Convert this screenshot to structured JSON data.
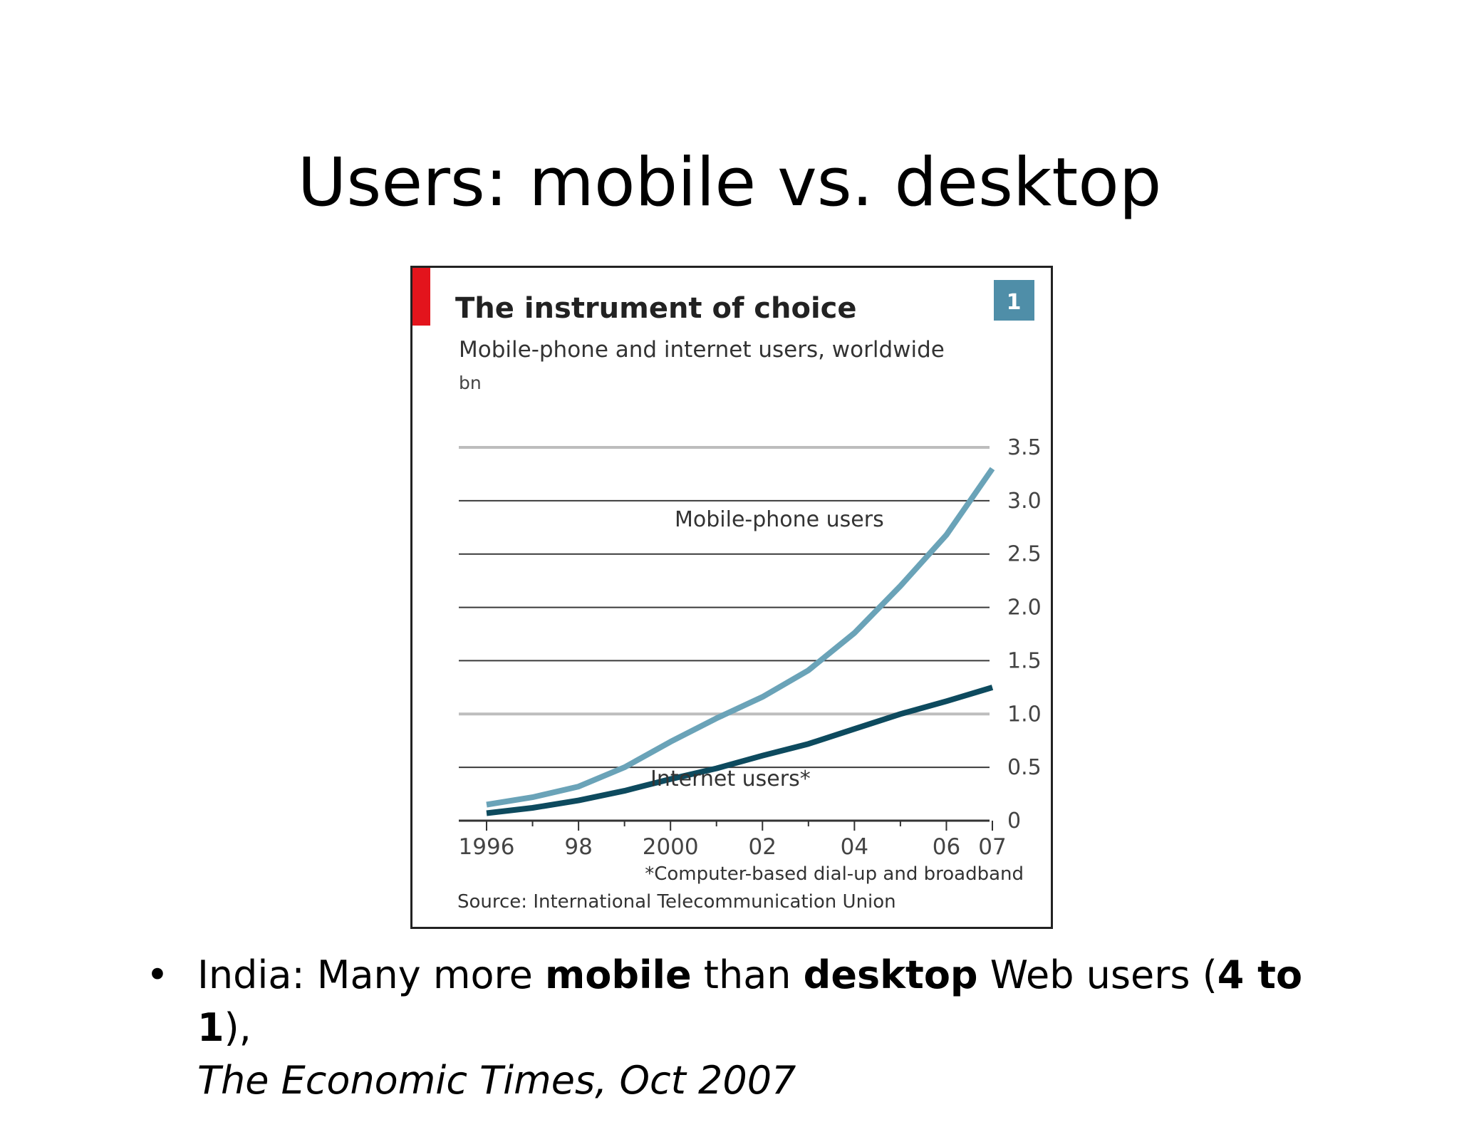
{
  "slide": {
    "title": "Users: mobile vs. desktop"
  },
  "bullet": {
    "marker": "•",
    "prefix": "India: Many more ",
    "bold_1": "mobile",
    "middle_1": " than ",
    "bold_2": "desktop",
    "middle_2": " Web users (",
    "bold_3": "4 to 1",
    "suffix": "),",
    "citation": "The Economic Times, Oct 2007"
  },
  "colors": {
    "accent_red": "#e3141c",
    "badge_blue": "#4f8ea8",
    "mobile_line": "#6aa3b8",
    "internet_line": "#0d4a5e",
    "grid_dark": "#3a3a3a",
    "grid_light": "#bdbdbd"
  },
  "chart_data": {
    "type": "line",
    "title": "The instrument of choice",
    "badge": "1",
    "subtitle": "Mobile-phone and internet users, worldwide",
    "unit_label": "bn",
    "ylim": [
      0,
      3.5
    ],
    "y_ticks": [
      "3.5",
      "3.0",
      "2.5",
      "2.0",
      "1.5",
      "1.0",
      "0.5",
      "0"
    ],
    "y_tick_values": [
      3.5,
      3.0,
      2.5,
      2.0,
      1.5,
      1.0,
      0.5,
      0
    ],
    "xlim": [
      1996,
      2007
    ],
    "x_tick_labels": [
      "1996",
      "98",
      "2000",
      "02",
      "04",
      "06",
      "07"
    ],
    "x_tick_values": [
      1996,
      1998,
      2000,
      2002,
      2004,
      2006,
      2007
    ],
    "y_axis_position": "right",
    "series": [
      {
        "name": "Mobile-phone users",
        "color_key": "mobile_line",
        "x": [
          1996,
          1997,
          1998,
          1999,
          2000,
          2001,
          2002,
          2003,
          2004,
          2005,
          2006,
          2007
        ],
        "values": [
          0.15,
          0.22,
          0.32,
          0.5,
          0.74,
          0.96,
          1.16,
          1.41,
          1.76,
          2.2,
          2.68,
          3.3
        ]
      },
      {
        "name": "Internet users*",
        "color_key": "internet_line",
        "x": [
          1996,
          1997,
          1998,
          1999,
          2000,
          2001,
          2002,
          2003,
          2004,
          2005,
          2006,
          2007
        ],
        "values": [
          0.07,
          0.12,
          0.19,
          0.28,
          0.39,
          0.49,
          0.61,
          0.72,
          0.86,
          1.0,
          1.12,
          1.25
        ]
      }
    ],
    "footnote": "*Computer-based dial-up and broadband",
    "source": "Source: International Telecommunication Union"
  }
}
